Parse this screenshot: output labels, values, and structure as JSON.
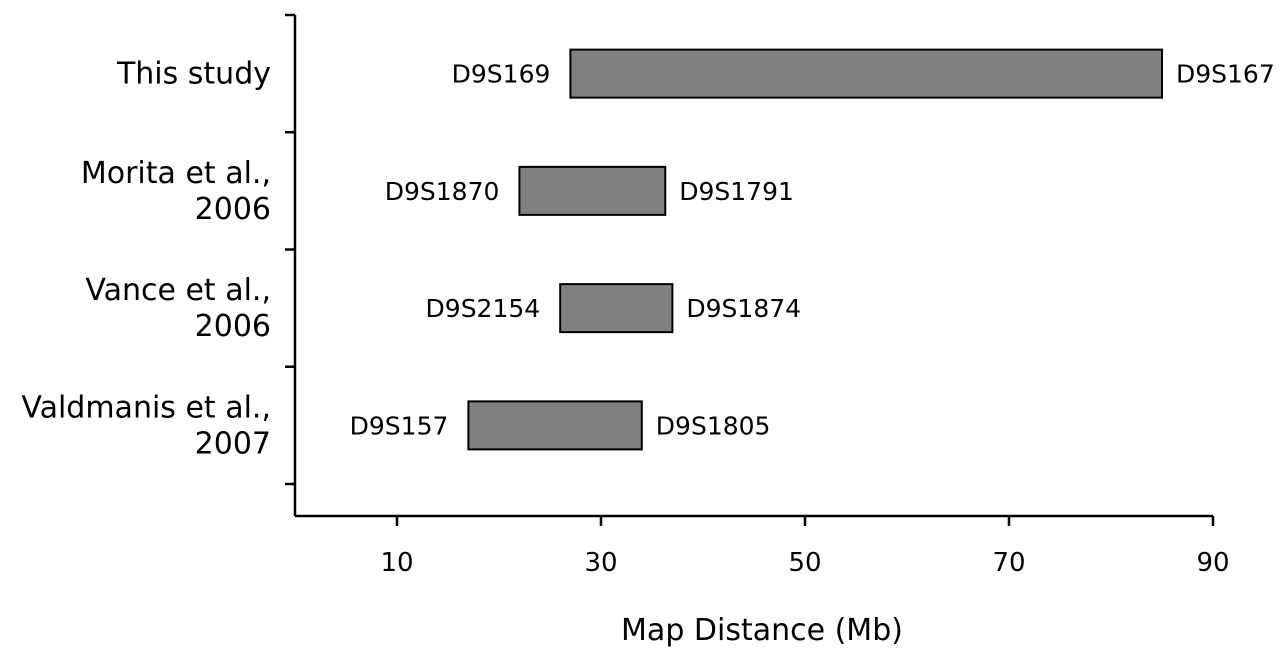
{
  "chart_data": {
    "type": "bar",
    "orientation": "horizontal",
    "title": "",
    "xlabel": "Map Distance (Mb)",
    "ylabel": "",
    "xlim": [
      0,
      90
    ],
    "xticks": [
      10,
      30,
      50,
      70,
      90
    ],
    "grid": false,
    "bar_color": "#808080",
    "categories": [
      {
        "label_lines": [
          "This study"
        ],
        "start": 27,
        "end": 85,
        "start_marker": "D9S169",
        "end_marker": "D9S167"
      },
      {
        "label_lines": [
          "Morita et al.,",
          "2006"
        ],
        "start": 22,
        "end": 36.3,
        "start_marker": "D9S1870",
        "end_marker": "D9S1791"
      },
      {
        "label_lines": [
          "Vance et al.,",
          "2006"
        ],
        "start": 26,
        "end": 37,
        "start_marker": "D9S2154",
        "end_marker": "D9S1874"
      },
      {
        "label_lines": [
          "Valdmanis et al.,",
          "2007"
        ],
        "start": 17,
        "end": 34,
        "start_marker": "D9S157",
        "end_marker": "D9S1805"
      }
    ]
  }
}
